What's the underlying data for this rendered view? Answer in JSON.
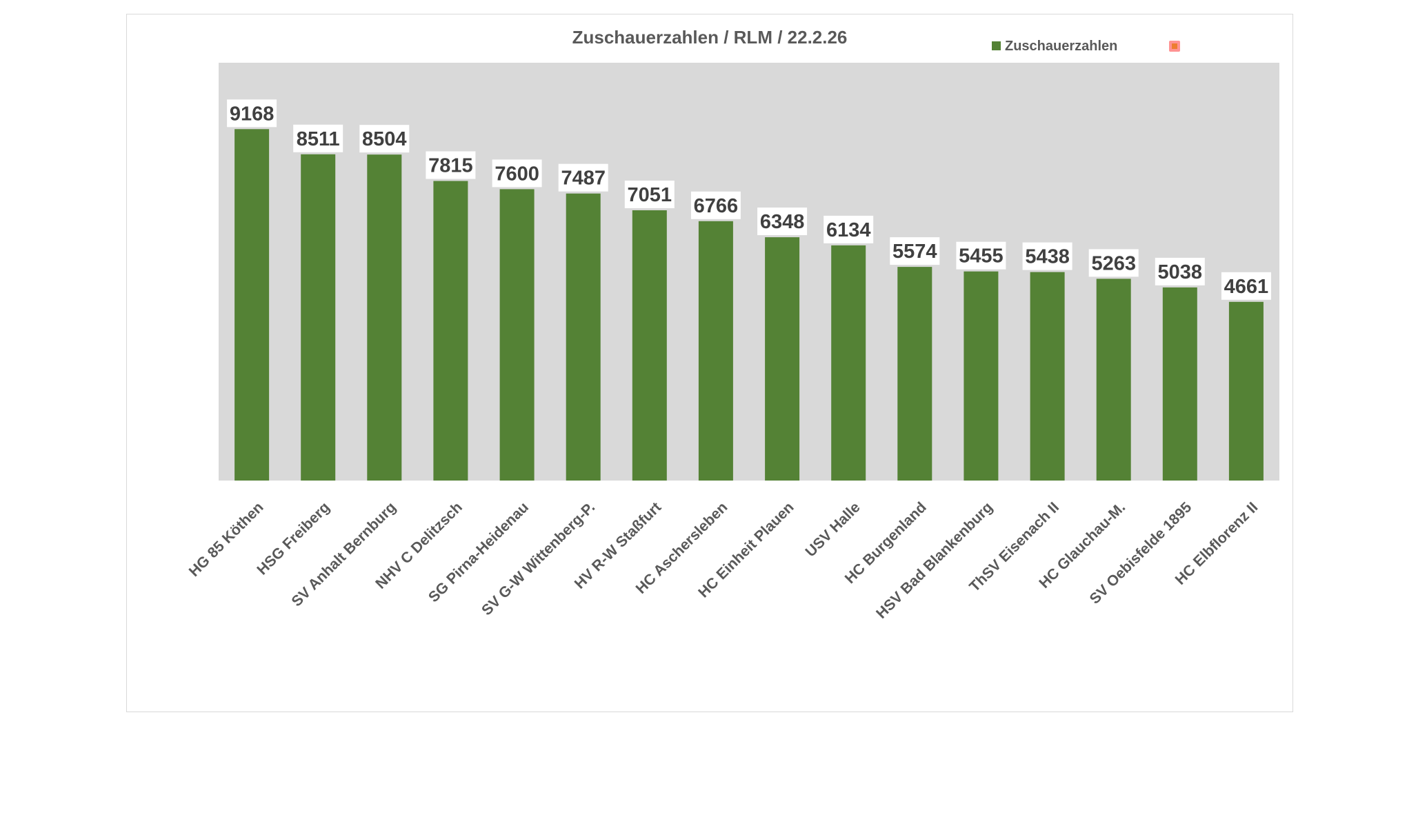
{
  "chart_data": {
    "type": "bar",
    "title": "Zuschauerzahlen / RLM / 22.2.26",
    "categories": [
      "HG 85 Köthen",
      "HSG Freiberg",
      "SV Anhalt Bernburg",
      "NHV C Delitzsch",
      "SG Pirna-Heidenau",
      "SV G-W Wittenberg-P.",
      "HV R-W Staßfurt",
      "HC Aschersleben",
      "HC Einheit Plauen",
      "USV Halle",
      "HC Burgenland",
      "HSV Bad Blankenburg",
      "ThSV Eisenach II",
      "HC Glauchau-M.",
      "SV Oebisfelde 1895",
      "HC Elbflorenz II"
    ],
    "series": [
      {
        "name": "Zuschauerzahlen",
        "values": [
          9168,
          8511,
          8504,
          7815,
          7600,
          7487,
          7051,
          6766,
          6348,
          6134,
          5574,
          5455,
          5438,
          5263,
          5038,
          4661
        ]
      }
    ],
    "xlabel": "",
    "ylabel": "",
    "ylim": [
      0,
      10000
    ],
    "grid": false,
    "legend_position": "top-right",
    "legend_entries": [
      {
        "label": "Zuschauerzahlen",
        "color": "#548235"
      },
      {
        "label": "",
        "color": "#ff5050"
      }
    ],
    "colors": {
      "bar": "#548235",
      "plot_area": "#d9d9d9",
      "label_box": "#ffffff",
      "marker_fill": "#ed7d31",
      "marker_border": "#ff6b6b"
    }
  }
}
